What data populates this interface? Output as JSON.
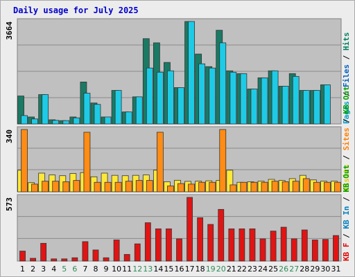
{
  "chart_data": {
    "type": "bar",
    "title": "Daily usage for July 2025",
    "days": [
      "1",
      "2",
      "3",
      "4",
      "5",
      "6",
      "7",
      "8",
      "9",
      "10",
      "11",
      "12",
      "13",
      "14",
      "15",
      "16",
      "17",
      "18",
      "19",
      "20",
      "21",
      "22",
      "23",
      "24",
      "25",
      "26",
      "27",
      "28",
      "29",
      "30",
      "31"
    ],
    "weekend_days": [
      "5",
      "6",
      "12",
      "13",
      "19",
      "20",
      "26",
      "27"
    ],
    "panels": [
      {
        "name": "top",
        "ymax_label": "3664",
        "ymax": 3664,
        "legend": [
          {
            "text": "Pages",
            "color": "#00a0c8"
          },
          {
            "text": " / ",
            "color": "#000000"
          },
          {
            "text": "Files",
            "color": "#0060c0"
          },
          {
            "text": " / ",
            "color": "#000000"
          },
          {
            "text": "Hits",
            "color": "#008060"
          }
        ],
        "series": [
          {
            "name": "Hits",
            "color": "#1a7a64",
            "values": [
              1000,
              250,
              1050,
              150,
              120,
              250,
              1500,
              750,
              250,
              1200,
              430,
              970,
              3050,
              2900,
              2200,
              1300,
              3664,
              2500,
              2050,
              3350,
              1900,
              1800,
              1250,
              1650,
              1900,
              1350,
              1800,
              1200,
              1200,
              1400,
              0
            ]
          },
          {
            "name": "Files",
            "color": "#1ecbe6",
            "values": [
              300,
              180,
              1050,
              130,
              120,
              220,
              1100,
              700,
              250,
              1200,
              430,
              970,
              2000,
              1850,
              1900,
              1300,
              3664,
              2150,
              2000,
              2900,
              1850,
              1800,
              1250,
              1650,
              1900,
              1350,
              1700,
              1200,
              1200,
              1400,
              0
            ]
          }
        ]
      },
      {
        "name": "middle",
        "ymax_label": "340",
        "ymax": 340,
        "legend": [
          {
            "text": "Visits",
            "color": "#e0d000"
          },
          {
            "text": " / ",
            "color": "#000000"
          },
          {
            "text": "Sites",
            "color": "#ff8000"
          },
          {
            "text": " / ",
            "color": "#000000"
          },
          {
            "text": "KB Out",
            "color": "#00a000"
          }
        ],
        "series": [
          {
            "name": "Visits",
            "color": "#ffe838",
            "values": [
              118,
              50,
              102,
              92,
              88,
              100,
              105,
              82,
              102,
              90,
              88,
              90,
              92,
              118,
              55,
              63,
              57,
              58,
              60,
              62,
              118,
              52,
              55,
              58,
              68,
              62,
              72,
              90,
              65,
              58,
              58
            ]
          },
          {
            "name": "Sites",
            "color": "#ff8c14",
            "values": [
              340,
              42,
              58,
              58,
              55,
              62,
              325,
              52,
              52,
              52,
              58,
              62,
              62,
              325,
              32,
              45,
              42,
              52,
              52,
              340,
              38,
              52,
              52,
              52,
              58,
              55,
              58,
              72,
              52,
              52,
              52
            ]
          }
        ]
      },
      {
        "name": "bottom",
        "ymax_label": "573",
        "ymax": 573,
        "legend": [
          {
            "text": "KB F",
            "color": "#e00000"
          },
          {
            "text": " / ",
            "color": "#000000"
          },
          {
            "text": "KB In",
            "color": "#0080c0"
          },
          {
            "text": " / ",
            "color": "#000000"
          },
          {
            "text": "KB Out",
            "color": "#00a000"
          }
        ],
        "series": [
          {
            "name": "KB F",
            "color": "#e11414",
            "values": [
              90,
              25,
              160,
              20,
              20,
              30,
              175,
              100,
              30,
              190,
              60,
              155,
              345,
              290,
              290,
              200,
              573,
              390,
              330,
              465,
              290,
              290,
              290,
              200,
              270,
              305,
              200,
              280,
              190,
              195,
              230
            ]
          }
        ]
      }
    ]
  }
}
